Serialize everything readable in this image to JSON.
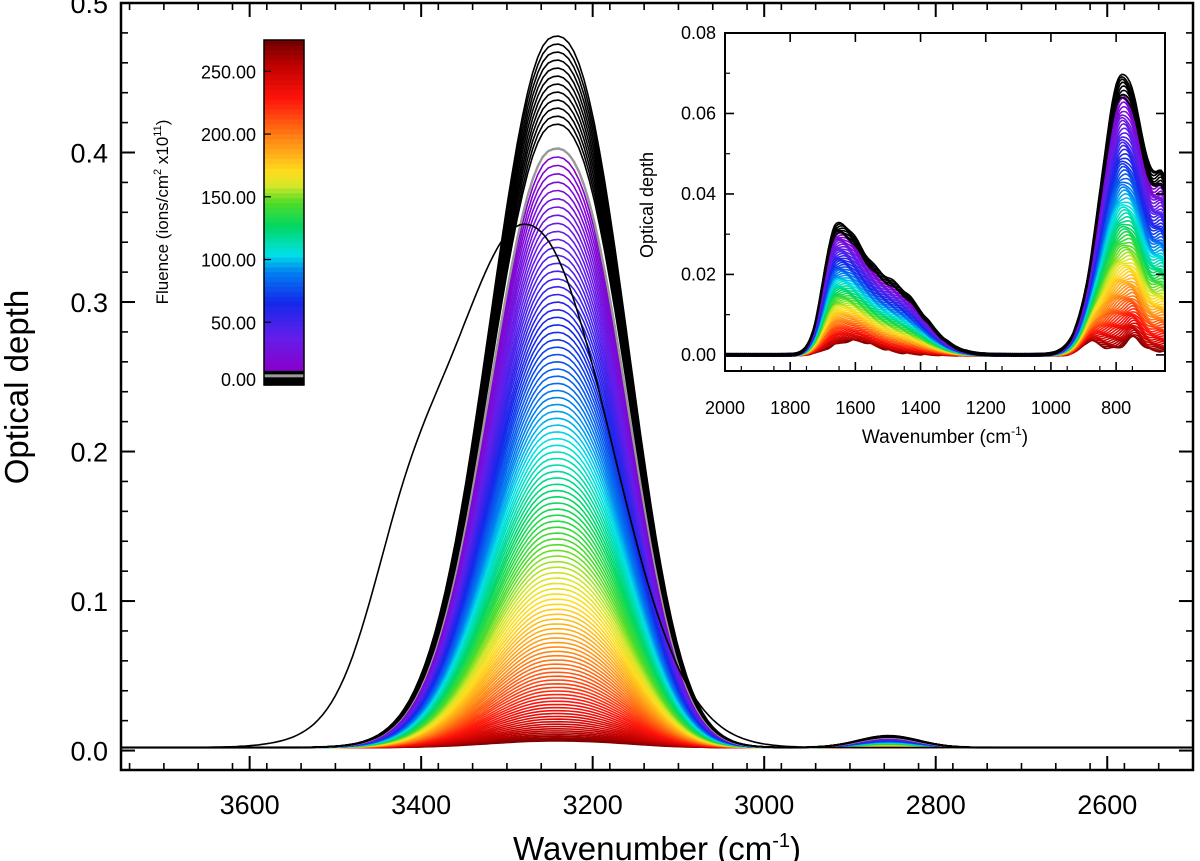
{
  "chart_data": [
    {
      "type": "line",
      "xlabel": "Wavenumber (cm",
      "xlabel_sup": "-1",
      "xlabel_end": ")",
      "ylabel": "Optical depth",
      "xlim": [
        3750,
        2500
      ],
      "ylim": [
        -0.013,
        0.5
      ],
      "x_ticks": [
        3600,
        3400,
        3200,
        3000,
        2800,
        2600
      ],
      "x_tick_labels": [
        "3600",
        "3400",
        "3200",
        "3000",
        "2800",
        "2600"
      ],
      "y_ticks": [
        0.0,
        0.1,
        0.2,
        0.3,
        0.4,
        0.5
      ],
      "y_tick_labels": [
        "0.0",
        "0.1",
        "0.2",
        "0.3",
        "0.4",
        "0.5"
      ],
      "n_spectra": 120,
      "fluence_min": 0,
      "fluence_max": 275,
      "band_center": 3250,
      "peak_optical_depth_max": 0.462,
      "peak_optical_depth_min": 0.004,
      "first_spectrum_peak": {
        "x": 3280,
        "y": 0.35
      },
      "highlighted_spectrum_peak_gray": 0.402,
      "small_band_center": 2855,
      "small_band_peak": 0.008
    },
    {
      "type": "line",
      "role": "inset",
      "xlabel": "Wavenumber (cm",
      "xlabel_sup": "-1",
      "xlabel_end": ")",
      "ylabel": "Optical depth",
      "xlim": [
        2000,
        650
      ],
      "ylim": [
        -0.004,
        0.08
      ],
      "x_ticks": [
        2000,
        1800,
        1600,
        1400,
        1200,
        1000,
        800
      ],
      "x_tick_labels": [
        "2000",
        "1800",
        "1600",
        "1400",
        "1200",
        "1000",
        "800"
      ],
      "y_ticks": [
        0.0,
        0.02,
        0.04,
        0.06,
        0.08
      ],
      "y_tick_labels": [
        "0.00",
        "0.02",
        "0.04",
        "0.06",
        "0.08"
      ],
      "bands": [
        {
          "center": 1660,
          "peak": 0.03
        },
        {
          "center": 1480,
          "peak": 0.016
        },
        {
          "center": 780,
          "peak": 0.07
        }
      ]
    }
  ],
  "colorbar": {
    "label_pre": "Fluence (ions/cm",
    "label_sup1": "2",
    "label_mid": " x10",
    "label_sup2": "11",
    "label_end": ")",
    "min": 0,
    "max": 275,
    "ticks": [
      0,
      50,
      100,
      150,
      200,
      250
    ],
    "tick_labels": [
      "0.00",
      "50.00",
      "100.00",
      "150.00",
      "200.00",
      "250.00"
    ]
  }
}
